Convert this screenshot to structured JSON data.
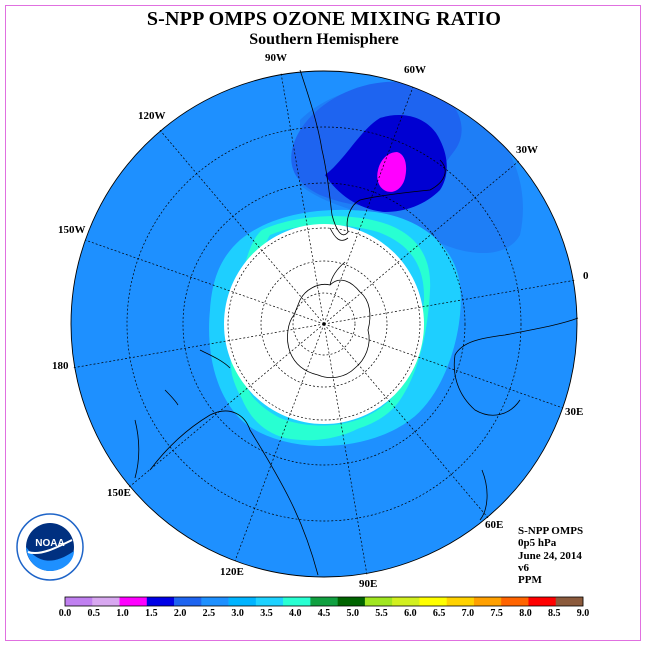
{
  "title": "S-NPP OMPS OZONE MIXING RATIO",
  "subtitle": "Southern Hemisphere",
  "lon_labels": [
    "90W",
    "60W",
    "30W",
    "0",
    "30E",
    "60E",
    "90E",
    "120E",
    "150E",
    "180",
    "150W",
    "120W"
  ],
  "info": {
    "line1": "S-NPP OMPS",
    "line2": "0p5 hPa",
    "line3": "June 24, 2014",
    "line4": "v6",
    "line5": "PPM"
  },
  "logo_text": "NOAA",
  "logo_ring_text": "NATIONAL OCEANIC AND ATMOSPHERIC ADMINISTRATION · U.S. DEPARTMENT OF COMMERCE",
  "colorbar": {
    "ticks": [
      "0.0",
      "0.5",
      "1.0",
      "1.5",
      "2.0",
      "2.5",
      "3.0",
      "3.5",
      "4.0",
      "4.5",
      "5.0",
      "5.5",
      "6.0",
      "6.5",
      "7.0",
      "7.5",
      "8.0",
      "8.5",
      "9.0"
    ],
    "colors": [
      "#c080f0",
      "#d8a8f0",
      "#ff00ff",
      "#0000e6",
      "#1e64f0",
      "#1e90ff",
      "#00b4ff",
      "#1ed2ff",
      "#28ffd2",
      "#10a040",
      "#006400",
      "#a0e620",
      "#d2f020",
      "#ffff00",
      "#ffd200",
      "#ffa000",
      "#ff6400",
      "#ff0000",
      "#8b5a3c"
    ]
  },
  "colors": {
    "background_ozone": "#1e90ff",
    "ocean_ring_fill": "#1e90ff",
    "frame": "#e070e0"
  }
}
